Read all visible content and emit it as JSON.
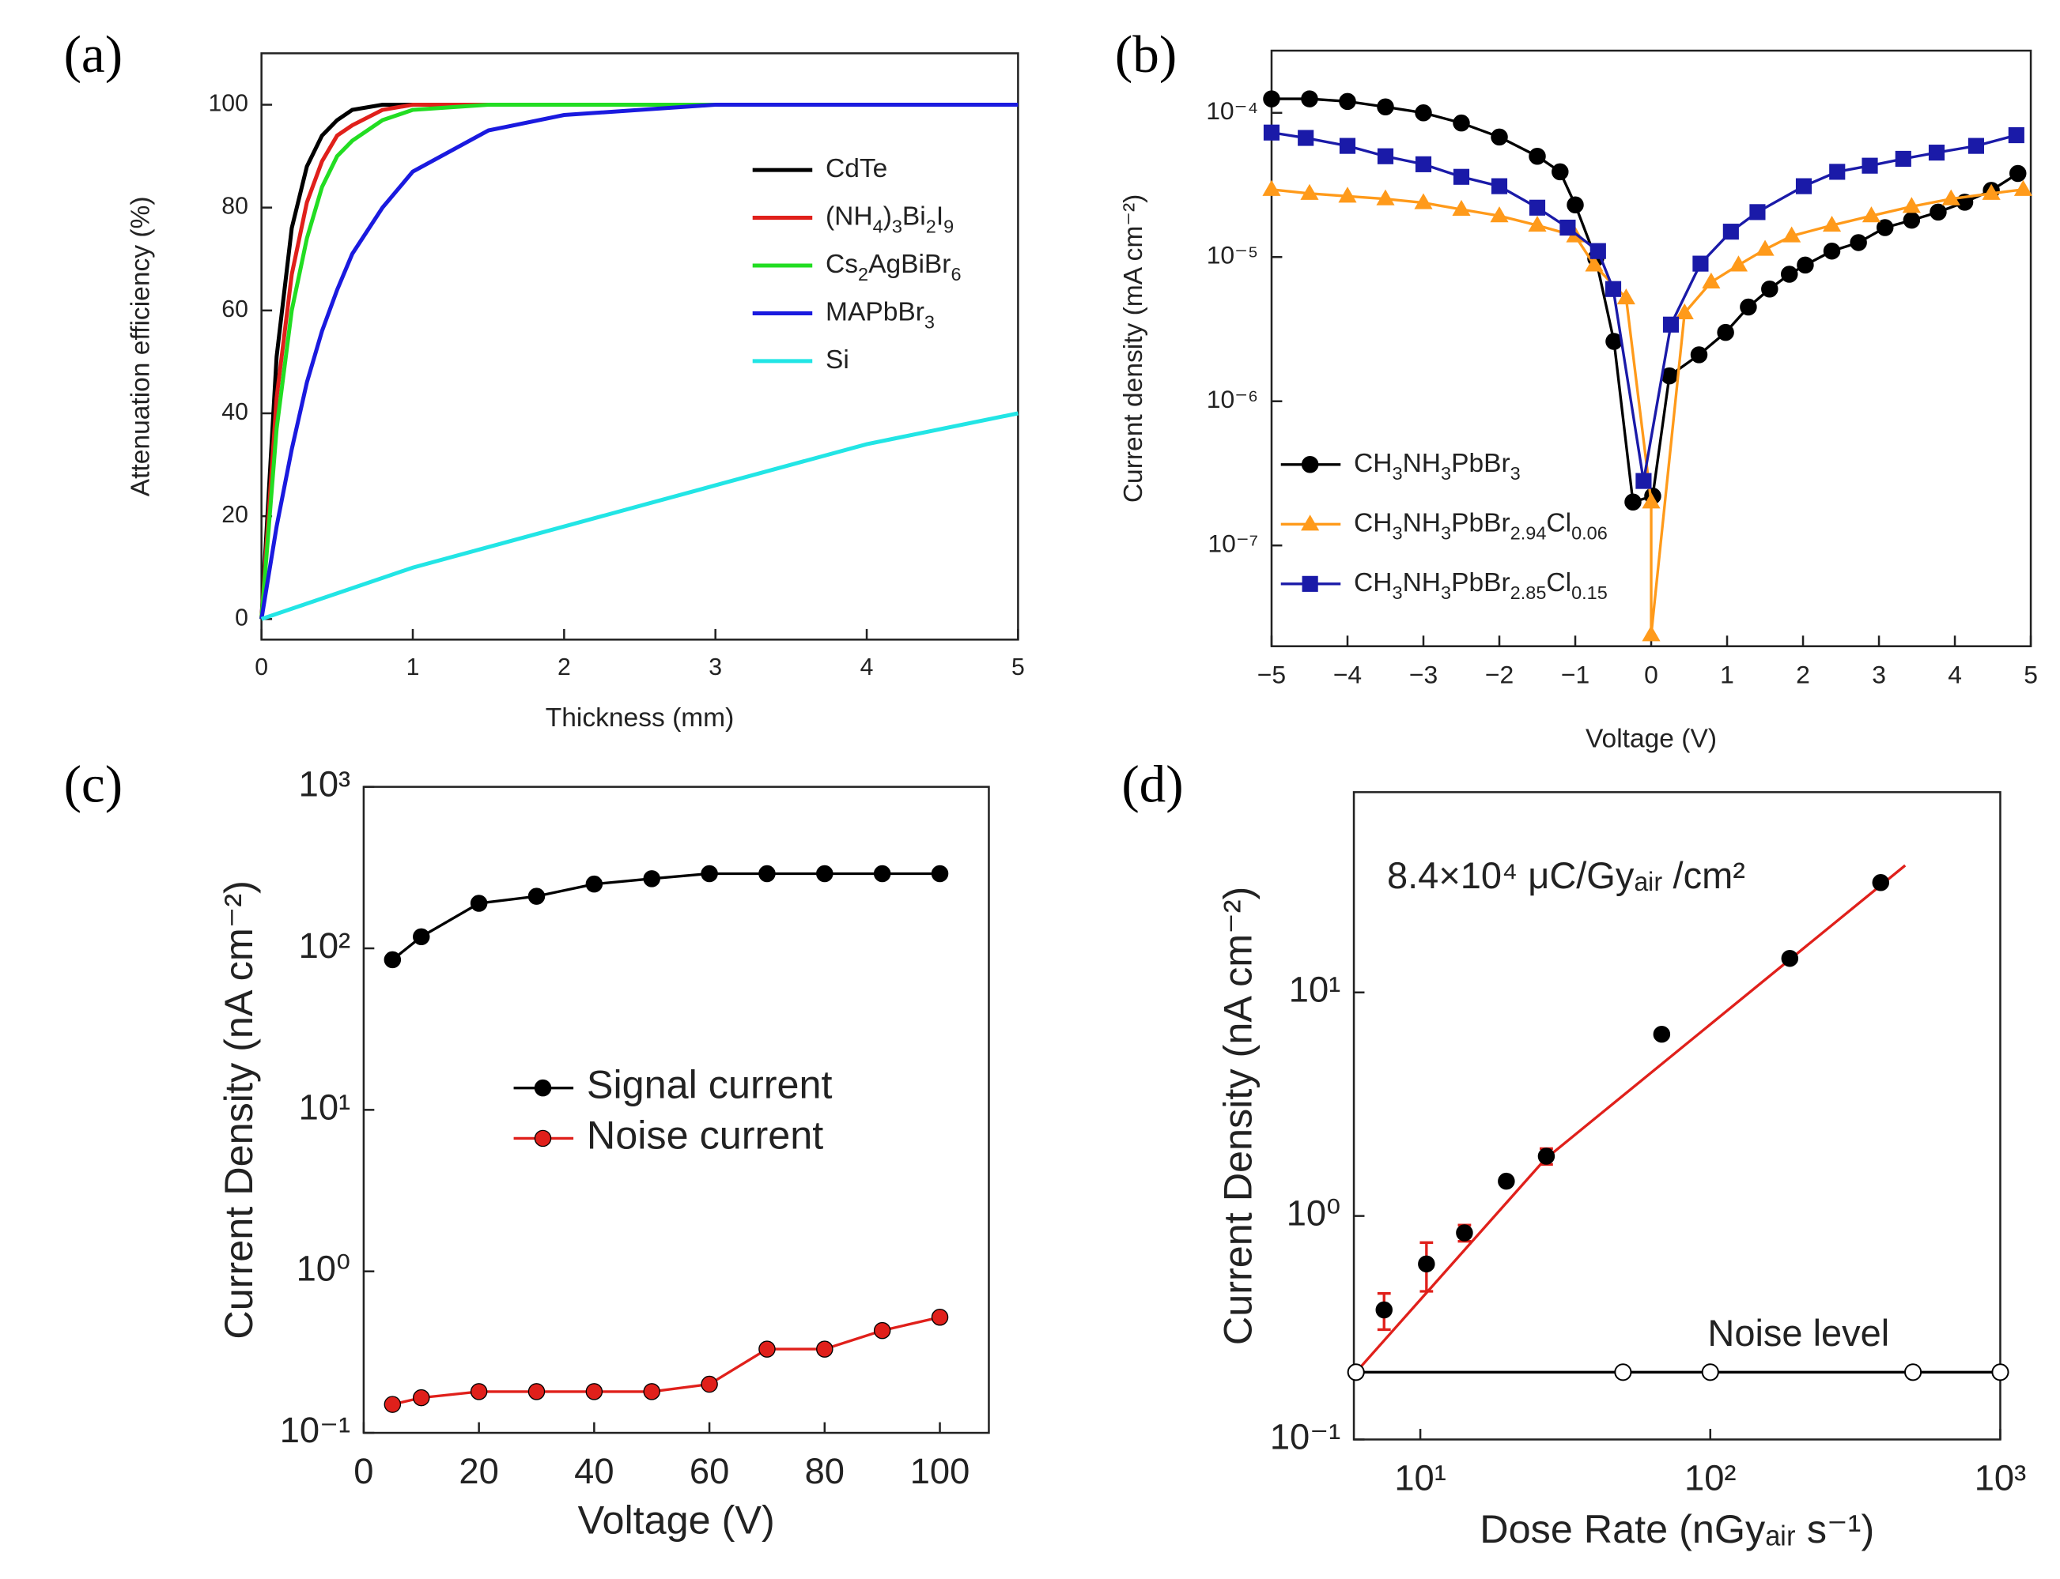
{
  "chart_data": [
    {
      "type": "line",
      "panel_label": "(a)",
      "xlabel": "Thickness (mm)",
      "ylabel": "Attenuation efficiency (%)",
      "xlim": [
        0,
        5
      ],
      "ylim": [
        -4,
        110
      ],
      "xticks": [
        0,
        1,
        2,
        3,
        4,
        5
      ],
      "yticks": [
        0,
        20,
        40,
        60,
        80,
        100
      ],
      "legend": "right",
      "series": [
        {
          "name": "CdTe",
          "color": "#000000",
          "x": [
            0,
            0.1,
            0.2,
            0.3,
            0.4,
            0.5,
            0.6,
            0.8,
            1,
            1.5,
            2,
            3,
            4,
            5
          ],
          "values": [
            0,
            51,
            76,
            88,
            94,
            97,
            99,
            100,
            100,
            100,
            100,
            100,
            100,
            100
          ]
        },
        {
          "name": "(NH4)3Bi2I9",
          "color": "#e0201b",
          "x": [
            0,
            0.1,
            0.2,
            0.3,
            0.4,
            0.5,
            0.6,
            0.8,
            1,
            1.5,
            2,
            3,
            4,
            5
          ],
          "values": [
            0,
            43,
            67,
            81,
            89,
            94,
            96,
            99,
            100,
            100,
            100,
            100,
            100,
            100
          ]
        },
        {
          "name": "Cs2AgBiBr6",
          "color": "#22dd22",
          "x": [
            0,
            0.1,
            0.2,
            0.3,
            0.4,
            0.5,
            0.6,
            0.8,
            1,
            1.5,
            2,
            3,
            4,
            5
          ],
          "values": [
            0,
            37,
            60,
            74,
            84,
            90,
            93,
            97,
            99,
            100,
            100,
            100,
            100,
            100
          ]
        },
        {
          "name": "MAPbBr3",
          "color": "#1a1adf",
          "x": [
            0,
            0.1,
            0.2,
            0.3,
            0.4,
            0.5,
            0.6,
            0.8,
            1,
            1.5,
            2,
            3,
            4,
            5
          ],
          "values": [
            0,
            18,
            33,
            46,
            56,
            64,
            71,
            80,
            87,
            95,
            98,
            100,
            100,
            100
          ]
        },
        {
          "name": "Si",
          "color": "#22e5e5",
          "x": [
            0,
            0.1,
            0.2,
            0.3,
            0.4,
            0.5,
            0.6,
            0.8,
            1,
            1.5,
            2,
            3,
            4,
            5
          ],
          "values": [
            0,
            1,
            2,
            3,
            4,
            5,
            6,
            8,
            10,
            14,
            18,
            26,
            34,
            40
          ]
        }
      ]
    },
    {
      "type": "line",
      "panel_label": "(b)",
      "xlabel": "Voltage (V)",
      "ylabel": "Current density (mA cm⁻²)",
      "xlim": [
        -5,
        5
      ],
      "ylim": [
        2e-08,
        0.00027
      ],
      "ylog": true,
      "xticks": [
        {
          "value": -5,
          "label": "−5"
        },
        {
          "value": -4,
          "label": "−4"
        },
        {
          "value": -3,
          "label": "−3"
        },
        {
          "value": -2,
          "label": "−2"
        },
        {
          "value": -1,
          "label": "−1"
        },
        0,
        1,
        2,
        3,
        4,
        5
      ],
      "yticks": [
        {
          "value": 1e-07,
          "label": "10⁻⁷"
        },
        {
          "value": 1e-06,
          "label": "10⁻⁶"
        },
        {
          "value": 1e-05,
          "label": "10⁻⁵"
        },
        {
          "value": 0.0001,
          "label": "10⁻⁴"
        }
      ],
      "legend": "lower left",
      "series": [
        {
          "name": "CH3NH3PbBr3",
          "color": "#000000",
          "marker": "circle",
          "x": [
            -5,
            -4.5,
            -4,
            -3.5,
            -3,
            -2.5,
            -2,
            -1.5,
            -1.2,
            -1,
            -0.73,
            -0.49,
            -0.24,
            0.02,
            0.24,
            0.63,
            0.98,
            1.28,
            1.56,
            1.82,
            2.03,
            2.38,
            2.73,
            3.08,
            3.43,
            3.78,
            4.13,
            4.48,
            4.83
          ],
          "values": [
            0.000125,
            0.000125,
            0.00012,
            0.00011,
            0.0001,
            8.5e-05,
            6.8e-05,
            5e-05,
            3.9e-05,
            2.3e-05,
            9.8e-06,
            2.6e-06,
            2e-07,
            2.2e-07,
            1.5e-06,
            2.1e-06,
            3e-06,
            4.5e-06,
            6e-06,
            7.6e-06,
            8.8e-06,
            1.1e-05,
            1.26e-05,
            1.6e-05,
            1.8e-05,
            2.05e-05,
            2.4e-05,
            2.9e-05,
            3.8e-05
          ]
        },
        {
          "name": "CH3NH3PbBr2.94Cl0.06",
          "color": "#ff9a1a",
          "marker": "triangle",
          "x": [
            -5,
            -4.5,
            -4,
            -3.5,
            -3,
            -2.5,
            -2,
            -1.5,
            -1,
            -0.75,
            -0.33,
            0,
            0,
            0.44,
            0.79,
            1.15,
            1.5,
            1.85,
            2.38,
            2.9,
            3.43,
            3.95,
            4.48,
            4.9
          ],
          "values": [
            2.94e-05,
            2.76e-05,
            2.64e-05,
            2.53e-05,
            2.38e-05,
            2.14e-05,
            1.93e-05,
            1.66e-05,
            1.4e-05,
            8.8e-06,
            5.2e-06,
            2e-07,
            2.4e-08,
            4.1e-06,
            6.7e-06,
            8.8e-06,
            1.13e-05,
            1.4e-05,
            1.66e-05,
            1.93e-05,
            2.24e-05,
            2.53e-05,
            2.76e-05,
            2.94e-05
          ]
        },
        {
          "name": "CH3NH3PbBr2.85Cl0.15",
          "color": "#1a1aa8",
          "marker": "square",
          "x": [
            -5,
            -4.55,
            -4,
            -3.5,
            -3,
            -2.5,
            -2,
            -1.5,
            -1.1,
            -0.7,
            -0.5,
            -0.1,
            0.26,
            0.65,
            1.05,
            1.4,
            2.01,
            2.45,
            2.88,
            3.32,
            3.76,
            4.28,
            4.81
          ],
          "values": [
            7.3e-05,
            6.7e-05,
            5.9e-05,
            5e-05,
            4.4e-05,
            3.6e-05,
            3.1e-05,
            2.2e-05,
            1.6e-05,
            1.1e-05,
            6e-06,
            2.8e-07,
            3.4e-06,
            9e-06,
            1.5e-05,
            2.05e-05,
            3.1e-05,
            3.9e-05,
            4.3e-05,
            4.8e-05,
            5.3e-05,
            5.9e-05,
            7e-05
          ]
        }
      ]
    },
    {
      "type": "line",
      "panel_label": "(c)",
      "xlabel": "Voltage (V)",
      "ylabel": "Current Density (nA cm⁻²)",
      "xlim": [
        0,
        108.5
      ],
      "ylim": [
        0.1,
        1000
      ],
      "ylog": true,
      "xticks": [
        0,
        20,
        40,
        60,
        80,
        100
      ],
      "yticks": [
        {
          "value": 0.1,
          "label": "10⁻¹"
        },
        {
          "value": 1,
          "label": "10⁰"
        },
        {
          "value": 10,
          "label": "10¹"
        },
        {
          "value": 100,
          "label": "10²"
        },
        {
          "value": 1000,
          "label": "10³"
        }
      ],
      "legend": "center",
      "series": [
        {
          "name": "Signal current",
          "color": "#000000",
          "marker": "circle",
          "x": [
            5,
            10,
            20,
            30,
            40,
            50,
            60,
            70,
            80,
            90,
            100
          ],
          "values": [
            85,
            118,
            190,
            210,
            250,
            270,
            290,
            290,
            290,
            290,
            290
          ]
        },
        {
          "name": "Noise current",
          "color": "#e0201b",
          "marker": "circle",
          "x": [
            5,
            10,
            20,
            30,
            40,
            50,
            60,
            70,
            80,
            90,
            100
          ],
          "values": [
            0.15,
            0.165,
            0.18,
            0.18,
            0.18,
            0.18,
            0.2,
            0.33,
            0.33,
            0.43,
            0.52
          ]
        }
      ]
    },
    {
      "type": "line",
      "panel_label": "(d)",
      "xlabel": "Dose Rate (nGyₐᵢᵣ s⁻¹)",
      "ylabel": "Current Density (nA cm⁻²)",
      "xlim": [
        5.9,
        1000
      ],
      "ylim": [
        0.1,
        78.7
      ],
      "xlog": true,
      "ylog": true,
      "xticks": [
        {
          "value": 10,
          "label": "10¹"
        },
        {
          "value": 100,
          "label": "10²"
        },
        {
          "value": 1000,
          "label": "10³"
        }
      ],
      "yticks": [
        {
          "value": 0.1,
          "label": "10⁻¹"
        },
        {
          "value": 1,
          "label": "10⁰"
        },
        {
          "value": 10,
          "label": "10¹"
        }
      ],
      "annotations": [
        "8.4×10⁴  μC/Gyₐᵢᵣ /cm²",
        "Noise level"
      ],
      "series": [
        {
          "color": "#e0201b",
          "x": [
            6,
            27,
            470
          ],
          "values": [
            0.2,
            1.8,
            37
          ]
        },
        {
          "color": "#000000",
          "marker": "open-circle",
          "x": [
            6,
            50,
            100,
            500,
            1000
          ],
          "values": [
            0.2,
            0.2,
            0.2,
            0.2,
            0.2
          ]
        },
        {
          "color": "#000000",
          "marker": "circle",
          "line": false,
          "error_color": "#e0201b",
          "x": [
            7.5,
            10.5,
            14.2,
            19.8,
            27.2,
            68,
            188,
            387
          ],
          "values": [
            0.38,
            0.61,
            0.84,
            1.43,
            1.85,
            6.5,
            14.2,
            31
          ],
          "errors": [
            0.07,
            0.15,
            0.07,
            0.05,
            0.15,
            0.2,
            0.5,
            1
          ]
        }
      ]
    }
  ]
}
